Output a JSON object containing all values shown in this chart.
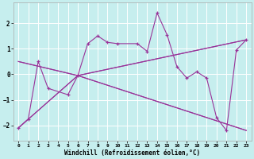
{
  "xlabel": "Windchill (Refroidissement éolien,°C)",
  "xlim": [
    -0.5,
    23.5
  ],
  "ylim": [
    -2.6,
    2.8
  ],
  "xticks": [
    0,
    1,
    2,
    3,
    4,
    5,
    6,
    7,
    8,
    9,
    10,
    11,
    12,
    13,
    14,
    15,
    16,
    17,
    18,
    19,
    20,
    21,
    22,
    23
  ],
  "yticks": [
    -2,
    -1,
    0,
    1,
    2
  ],
  "bg_color": "#c6eeee",
  "line_color": "#993399",
  "main_x": [
    0,
    1,
    2,
    3,
    5,
    6,
    7,
    8,
    9,
    10,
    12,
    13,
    14,
    15,
    16,
    17,
    18,
    19,
    20,
    21,
    22,
    23
  ],
  "main_y": [
    -2.1,
    -1.75,
    0.5,
    -0.55,
    -0.8,
    -0.05,
    1.2,
    1.5,
    1.25,
    1.2,
    1.2,
    0.9,
    2.4,
    1.55,
    0.3,
    -0.15,
    0.1,
    -0.15,
    -1.7,
    -2.2,
    0.95,
    1.35
  ],
  "fan_lines": [
    {
      "x": [
        0,
        6,
        23
      ],
      "y": [
        -2.1,
        -0.05,
        1.35
      ]
    },
    {
      "x": [
        0,
        6,
        23
      ],
      "y": [
        0.5,
        -0.05,
        1.35
      ]
    },
    {
      "x": [
        0,
        6,
        23
      ],
      "y": [
        -2.1,
        -0.05,
        -2.2
      ]
    },
    {
      "x": [
        0,
        6,
        23
      ],
      "y": [
        0.5,
        -0.05,
        -2.2
      ]
    }
  ]
}
